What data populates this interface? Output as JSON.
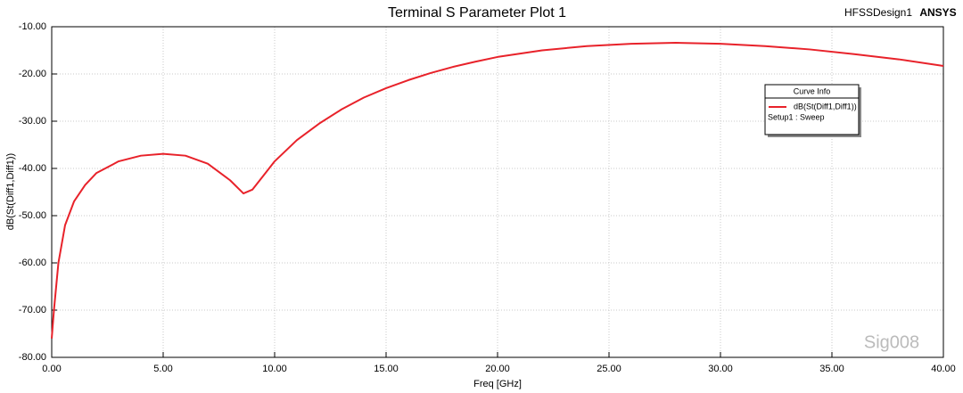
{
  "chart_data": {
    "type": "line",
    "title": "Terminal S Parameter Plot 1",
    "design_name": "HFSSDesign1",
    "brand": "ANSYS",
    "watermark": "Sig008",
    "x_label": "Freq [GHz]",
    "y_label": "dB(St(Diff1,Diff1))",
    "legend_title": "Curve Info",
    "legend_subtitle": "Setup1 : Sweep",
    "legend_position": "upper right",
    "grid": true,
    "x": [
      0,
      0.1,
      0.3,
      0.6,
      1,
      1.5,
      2,
      3,
      4,
      5,
      6,
      7,
      8,
      8.6,
      9,
      9.5,
      10,
      11,
      12,
      13,
      14,
      15,
      16,
      17,
      18,
      19,
      20,
      22,
      24,
      26,
      28,
      30,
      32,
      34,
      36,
      38,
      40
    ],
    "series": [
      {
        "name": "dB(St(Diff1,Diff1))",
        "color": "#e8222a",
        "values": [
          -76,
          -70,
          -60,
          -52,
          -47,
          -43.5,
          -41,
          -38.5,
          -37.3,
          -36.9,
          -37.3,
          -39,
          -42.5,
          -45.3,
          -44.5,
          -41.5,
          -38.5,
          -34,
          -30.5,
          -27.5,
          -25,
          -23,
          -21.3,
          -19.8,
          -18.5,
          -17.4,
          -16.4,
          -15,
          -14.1,
          -13.6,
          -13.4,
          -13.6,
          -14.1,
          -14.8,
          -15.8,
          -16.9,
          -18.3
        ]
      }
    ],
    "xlim": [
      0,
      40
    ],
    "xticks": [
      {
        "value": 0,
        "label": "0.00"
      },
      {
        "value": 5,
        "label": "5.00"
      },
      {
        "value": 10,
        "label": "10.00"
      },
      {
        "value": 15,
        "label": "15.00"
      },
      {
        "value": 20,
        "label": "20.00"
      },
      {
        "value": 25,
        "label": "25.00"
      },
      {
        "value": 30,
        "label": "30.00"
      },
      {
        "value": 35,
        "label": "35.00"
      },
      {
        "value": 40,
        "label": "40.00"
      }
    ],
    "ylim": [
      -80,
      -10
    ],
    "yticks": [
      {
        "value": -80,
        "label": "-80.00"
      },
      {
        "value": -70,
        "label": "-70.00"
      },
      {
        "value": -60,
        "label": "-60.00"
      },
      {
        "value": -50,
        "label": "-50.00"
      },
      {
        "value": -40,
        "label": "-40.00"
      },
      {
        "value": -30,
        "label": "-30.00"
      },
      {
        "value": -20,
        "label": "-20.00"
      },
      {
        "value": -10,
        "label": "-10.00"
      }
    ]
  }
}
